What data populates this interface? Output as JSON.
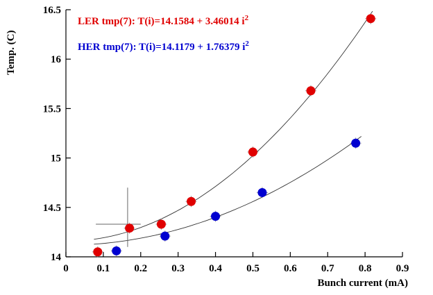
{
  "chart_data": {
    "type": "scatter",
    "title": "",
    "xlabel": "Bunch current (mA)",
    "ylabel": "Temp. (C)",
    "xlim": [
      0,
      0.9
    ],
    "ylim": [
      14,
      16.5
    ],
    "grid": false,
    "legend_position": "none",
    "xticks": [
      0,
      0.1,
      0.2,
      0.3,
      0.4,
      0.5,
      0.6,
      0.7,
      0.8,
      0.9
    ],
    "xtick_labels": [
      "0",
      "0.1",
      "0.2",
      "0.3",
      "0.4",
      "0.5",
      "0.6",
      "0.7",
      "0.8",
      "0.9"
    ],
    "yticks": [
      14,
      14.5,
      15,
      15.5,
      16,
      16.5
    ],
    "ytick_labels": [
      "14",
      "14.5",
      "15",
      "15.5",
      "16",
      "16.5"
    ],
    "series": [
      {
        "name": "LER",
        "color": "#e00000",
        "marker": "circle",
        "points": [
          [
            0.085,
            14.05
          ],
          [
            0.17,
            14.29
          ],
          [
            0.255,
            14.33
          ],
          [
            0.335,
            14.56
          ],
          [
            0.5,
            15.06
          ],
          [
            0.655,
            15.68
          ],
          [
            0.815,
            16.41
          ]
        ],
        "fit": {
          "intercept": 14.1584,
          "coef": 3.46014,
          "x_range": [
            0.075,
            0.82
          ]
        },
        "annotation": {
          "text": "LER tmp(7): T(i)=14.1584 + 3.46014 i",
          "sup": "2"
        }
      },
      {
        "name": "HER",
        "color": "#0000d0",
        "marker": "circle",
        "points": [
          [
            0.135,
            14.06
          ],
          [
            0.265,
            14.21
          ],
          [
            0.4,
            14.41
          ],
          [
            0.525,
            14.65
          ],
          [
            0.775,
            15.15
          ]
        ],
        "fit": {
          "intercept": 14.1179,
          "coef": 1.76379,
          "x_range": [
            0.075,
            0.79
          ]
        },
        "annotation": {
          "text": "HER tmp(7): T(i)=14.1179 + 1.76379 i",
          "sup": "2"
        }
      }
    ],
    "error_bar": {
      "x": 0.165,
      "y_low": 14.1,
      "y_high": 14.7,
      "y_mid": 14.33,
      "x_low": 0.08,
      "x_high": 0.2
    }
  }
}
